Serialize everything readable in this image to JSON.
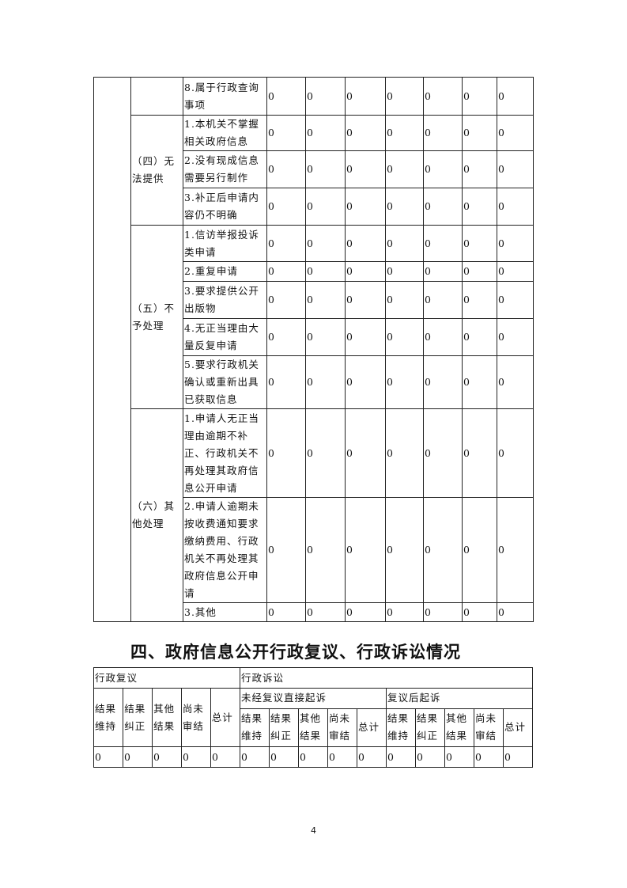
{
  "table1": {
    "groups": [
      {
        "label": "",
        "items": [
          {
            "label": "8.属于行政查询事项",
            "values": [
              "0",
              "0",
              "0",
              "0",
              "0",
              "0",
              "0"
            ]
          }
        ]
      },
      {
        "label": "（四）无法提供",
        "items": [
          {
            "label": "1.本机关不掌握相关政府信息",
            "values": [
              "0",
              "0",
              "0",
              "0",
              "0",
              "0",
              "0"
            ]
          },
          {
            "label": "2.没有现成信息需要另行制作",
            "values": [
              "0",
              "0",
              "0",
              "0",
              "0",
              "0",
              "0"
            ]
          },
          {
            "label": "3.补正后申请内容仍不明确",
            "values": [
              "0",
              "0",
              "0",
              "0",
              "0",
              "0",
              "0"
            ]
          }
        ]
      },
      {
        "label": "（五）不予处理",
        "items": [
          {
            "label": "1.信访举报投诉类申请",
            "values": [
              "0",
              "0",
              "0",
              "0",
              "0",
              "0",
              "0"
            ]
          },
          {
            "label": "2.重复申请",
            "values": [
              "0",
              "0",
              "0",
              "0",
              "0",
              "0",
              "0"
            ]
          },
          {
            "label": "3.要求提供公开出版物",
            "values": [
              "0",
              "0",
              "0",
              "0",
              "0",
              "0",
              "0"
            ]
          },
          {
            "label": "4.无正当理由大量反复申请",
            "values": [
              "0",
              "0",
              "0",
              "0",
              "0",
              "0",
              "0"
            ]
          },
          {
            "label": "5.要求行政机关确认或重新出具已获取信息",
            "values": [
              "0",
              "0",
              "0",
              "0",
              "0",
              "0",
              "0"
            ]
          }
        ]
      },
      {
        "label": "（六）其他处理",
        "items": [
          {
            "label": "1.申请人无正当理由逾期不补正、行政机关不再处理其政府信息公开申请",
            "values": [
              "0",
              "0",
              "0",
              "0",
              "0",
              "0",
              "0"
            ]
          },
          {
            "label": "2.申请人逾期未按收费通知要求缴纳费用、行政机关不再处理其政府信息公开申请",
            "values": [
              "0",
              "0",
              "0",
              "0",
              "0",
              "0",
              "0"
            ]
          },
          {
            "label": "3.其他",
            "values": [
              "0",
              "0",
              "0",
              "0",
              "0",
              "0",
              "0"
            ]
          }
        ]
      }
    ]
  },
  "section4": {
    "title": "四、政府信息公开行政复议、行政诉讼情况",
    "review": "行政复议",
    "litigation": "行政诉讼",
    "direct": "未经复议直接起诉",
    "after_review": "复议后起诉",
    "cols": [
      "结果维持",
      "结果纠正",
      "其他结果",
      "尚未审结",
      "总计"
    ],
    "values": [
      "0",
      "0",
      "0",
      "0",
      "0",
      "0",
      "0",
      "0",
      "0",
      "0",
      "0",
      "0",
      "0",
      "0",
      "0"
    ]
  },
  "page_number": "4"
}
